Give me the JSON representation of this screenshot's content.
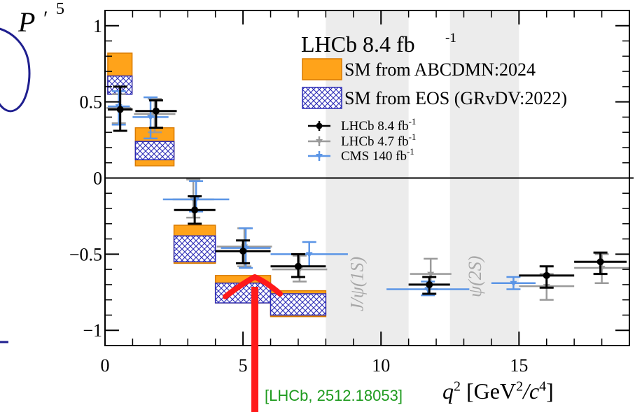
{
  "chart_data": {
    "type": "scatter",
    "title": "LHCb 8.4 fb",
    "title_sup": "-1",
    "ylabel": "P",
    "ylabel_prime": "′",
    "ylabel_sub": "5",
    "xlabel_pre": "q",
    "xlabel_post": " [GeV",
    "xlabel_mid": "/c",
    "xlabel_end": "]",
    "xlim": [
      0,
      19
    ],
    "ylim": [
      -1.1,
      1.1
    ],
    "xticks": [
      0,
      5,
      10,
      15
    ],
    "yticks": [
      -1,
      -0.5,
      0,
      0.5,
      1
    ],
    "ytick_labels": [
      "−1",
      "−0.5",
      "0",
      "0.5",
      "1"
    ],
    "vetoes": [
      {
        "label": "J/ψ(1S)",
        "x0": 8.0,
        "x1": 11.0
      },
      {
        "label": "ψ(2S)",
        "x0": 12.5,
        "x1": 15.0
      }
    ],
    "legend": [
      {
        "label": "SM from ABCDMN:2024",
        "kind": "orange-box"
      },
      {
        "label": "SM from EOS (GRvDV:2022)",
        "kind": "hatched-box"
      },
      {
        "label": "LHCb 8.4 fb",
        "sup": "-1",
        "kind": "black-marker"
      },
      {
        "label": "LHCb 4.7 fb",
        "sup": "-1",
        "kind": "gray-marker"
      },
      {
        "label": "CMS 140 fb",
        "sup": "-1",
        "kind": "blue-marker"
      }
    ],
    "sm_abcdmn": [
      {
        "x0": 0.1,
        "x1": 0.98,
        "y0": 0.55,
        "y1": 0.82
      },
      {
        "x0": 1.1,
        "x1": 2.5,
        "y0": 0.08,
        "y1": 0.33
      },
      {
        "x0": 2.5,
        "x1": 4.0,
        "y0": -0.56,
        "y1": -0.31
      },
      {
        "x0": 4.0,
        "x1": 6.0,
        "y0": -0.82,
        "y1": -0.64
      },
      {
        "x0": 6.0,
        "x1": 8.0,
        "y0": -0.91,
        "y1": -0.74
      }
    ],
    "sm_eos": [
      {
        "x0": 0.1,
        "x1": 0.98,
        "y0": 0.55,
        "y1": 0.67
      },
      {
        "x0": 1.1,
        "x1": 2.5,
        "y0": 0.12,
        "y1": 0.24
      },
      {
        "x0": 2.5,
        "x1": 4.0,
        "y0": -0.55,
        "y1": -0.38
      },
      {
        "x0": 4.0,
        "x1": 6.0,
        "y0": -0.82,
        "y1": -0.69
      },
      {
        "x0": 6.0,
        "x1": 8.0,
        "y0": -0.9,
        "y1": -0.76
      }
    ],
    "series": [
      {
        "name": "LHCb 8.4 fb-1",
        "color": "#000000",
        "points": [
          {
            "x": 0.55,
            "y": 0.45,
            "xerr": 0.45,
            "ylo": 0.31,
            "yhi": 0.6
          },
          {
            "x": 1.85,
            "y": 0.44,
            "xerr": 0.75,
            "ylo": 0.33,
            "yhi": 0.51
          },
          {
            "x": 3.25,
            "y": -0.21,
            "xerr": 0.75,
            "ylo": -0.3,
            "yhi": -0.12
          },
          {
            "x": 5.0,
            "y": -0.48,
            "xerr": 1.0,
            "ylo": -0.56,
            "yhi": -0.41
          },
          {
            "x": 7.0,
            "y": -0.58,
            "xerr": 1.0,
            "ylo": -0.65,
            "yhi": -0.5
          },
          {
            "x": 11.75,
            "y": -0.7,
            "xerr": 0.75,
            "ylo": -0.76,
            "yhi": -0.65
          },
          {
            "x": 16.0,
            "y": -0.64,
            "xerr": 1.0,
            "ylo": -0.72,
            "yhi": -0.58
          },
          {
            "x": 17.95,
            "y": -0.55,
            "xerr": 0.95,
            "ylo": -0.63,
            "yhi": -0.49
          }
        ]
      },
      {
        "name": "LHCb 4.7 fb-1",
        "color": "#9a9a9a",
        "points": [
          {
            "x": 0.5,
            "y": 0.46,
            "xerr": 0.45,
            "ylo": 0.36,
            "yhi": 0.55
          },
          {
            "x": 1.8,
            "y": 0.42,
            "xerr": 0.75,
            "ylo": 0.3,
            "yhi": 0.52
          },
          {
            "x": 3.2,
            "y": -0.14,
            "xerr": 0.75,
            "ylo": -0.26,
            "yhi": -0.01
          },
          {
            "x": 5.05,
            "y": -0.45,
            "xerr": 1.0,
            "ylo": -0.58,
            "yhi": -0.33
          },
          {
            "x": 7.05,
            "y": -0.6,
            "xerr": 1.0,
            "ylo": -0.68,
            "yhi": -0.51
          },
          {
            "x": 11.8,
            "y": -0.63,
            "xerr": 0.75,
            "ylo": -0.73,
            "yhi": -0.53
          },
          {
            "x": 16.0,
            "y": -0.71,
            "xerr": 1.0,
            "ylo": -0.8,
            "yhi": -0.63
          },
          {
            "x": 18.0,
            "y": -0.59,
            "xerr": 1.0,
            "ylo": -0.69,
            "yhi": -0.5
          }
        ]
      },
      {
        "name": "CMS 140 fb-1",
        "color": "#5b95e6",
        "points": [
          {
            "x": 0.5,
            "y": 0.47,
            "xerr": 0.4,
            "ylo": 0.35,
            "yhi": 0.57
          },
          {
            "x": 1.65,
            "y": 0.4,
            "xerr": 0.65,
            "ylo": 0.26,
            "yhi": 0.53
          },
          {
            "x": 3.3,
            "y": -0.14,
            "xerr": 1.2,
            "ylo": -0.22,
            "yhi": -0.02
          },
          {
            "x": 5.1,
            "y": -0.46,
            "xerr": 0.9,
            "ylo": -0.59,
            "yhi": -0.33
          },
          {
            "x": 7.4,
            "y": -0.5,
            "xerr": 1.4,
            "ylo": -0.58,
            "yhi": -0.42
          },
          {
            "x": 11.7,
            "y": -0.73,
            "xerr": 1.5,
            "ylo": -0.77,
            "yhi": -0.68
          },
          {
            "x": 14.8,
            "y": -0.69,
            "xerr": 0.8,
            "ylo": -0.73,
            "yhi": -0.65
          }
        ]
      }
    ]
  },
  "annotation": {
    "citation": "[LHCb, 2512.18053]"
  }
}
